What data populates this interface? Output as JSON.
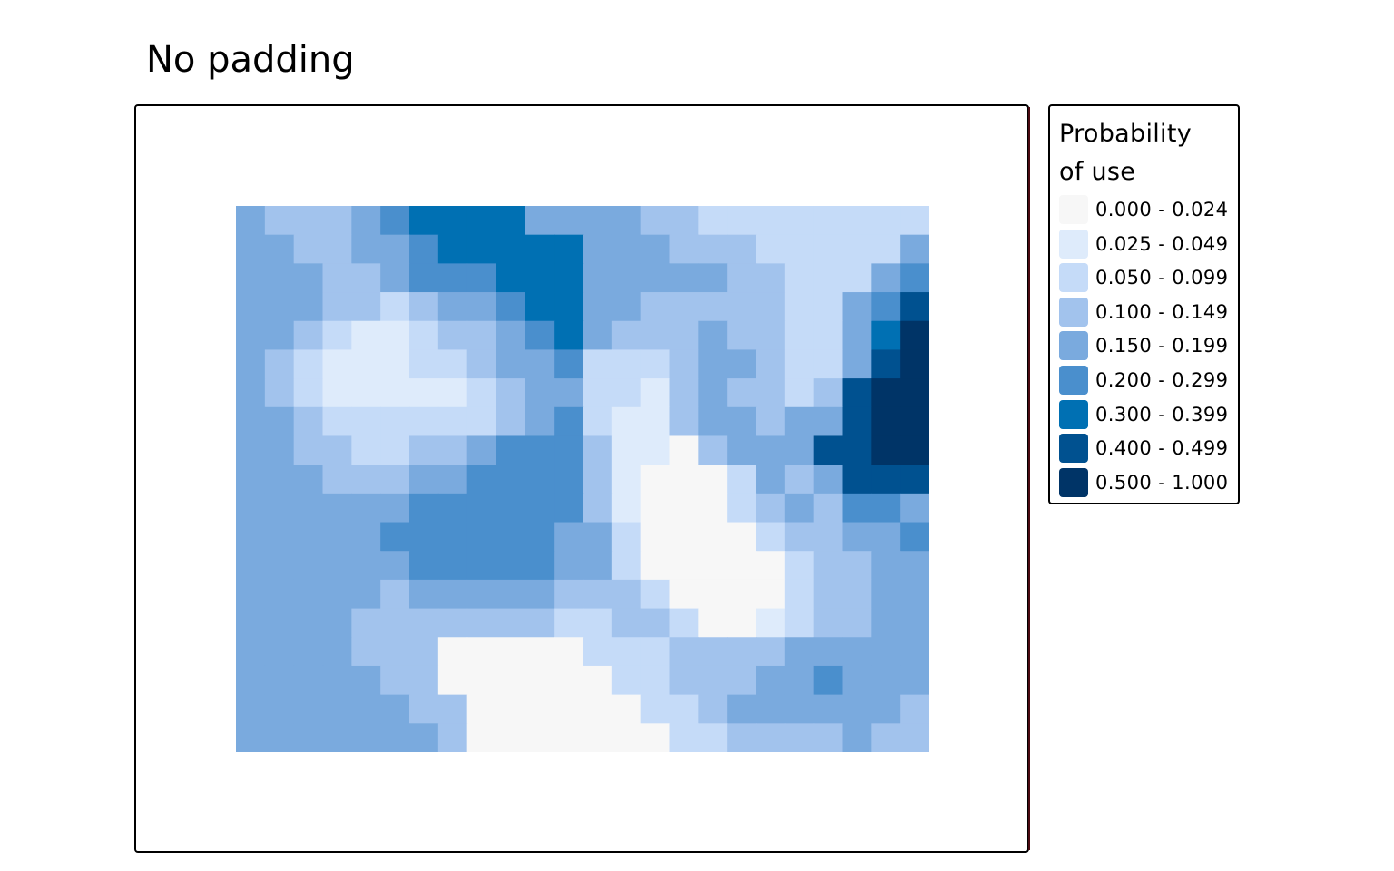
{
  "title": "No padding",
  "legend": {
    "title_lines": [
      "Probability",
      "of use"
    ],
    "items": [
      {
        "label": "0.000 - 0.024",
        "color": "#f7f7f7"
      },
      {
        "label": "0.025 - 0.049",
        "color": "#deebfb"
      },
      {
        "label": "0.050 - 0.099",
        "color": "#c5dbf8"
      },
      {
        "label": "0.100 - 0.149",
        "color": "#a2c3ed"
      },
      {
        "label": "0.150 - 0.199",
        "color": "#7aaade"
      },
      {
        "label": "0.200 - 0.299",
        "color": "#4a8fcd"
      },
      {
        "label": "0.300 - 0.399",
        "color": "#0070b3"
      },
      {
        "label": "0.400 - 0.499",
        "color": "#005190"
      },
      {
        "label": "0.500 - 1.000",
        "color": "#003467"
      }
    ]
  },
  "raster_grid": {
    "cols": 24,
    "rows": 19,
    "class_values": [
      "433345666644443322222222",
      "443344566666444333222224",
      "444334555666444443322245",
      "444332344566443333322457",
      "443211233456433343322468",
      "432111223445222344322478",
      "432111112344221343323788",
      "443222222345211344344788",
      "443322334555311034447788",
      "444333445555310002434777",
      "444444555555310002343554",
      "444445555554420000233445",
      "444444555554420000023344",
      "444443444443332000023344",
      "444433333332233200123344",
      "444433300000222333344444",
      "444443300000022333445444",
      "444444330000002234444443",
      "444444430000000223333433"
    ]
  }
}
